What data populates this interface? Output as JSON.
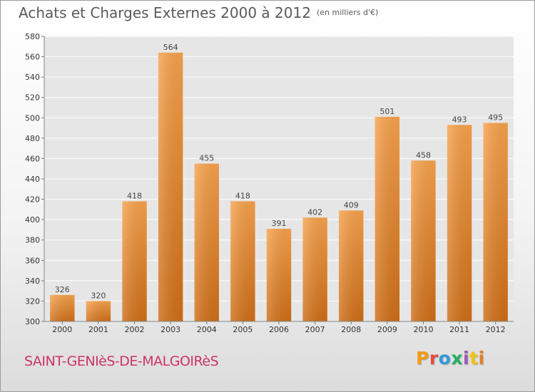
{
  "header": {
    "title": "Achats et Charges Externes 2000 à 2012",
    "unit": "(en milliers d'€)"
  },
  "footer": {
    "location": "SAINT-GENIèS-DE-MALGOIRèS",
    "logo_text": "Proxiti",
    "logo_colors": [
      "#f39c12",
      "#e74c3c",
      "#3498db",
      "#27ae60",
      "#9b59b6",
      "#f1c40f",
      "#e67e22"
    ]
  },
  "chart_data": {
    "type": "bar",
    "title": "Achats et Charges Externes 2000 à 2012",
    "subtitle": "(en milliers d'€)",
    "categories": [
      "2000",
      "2001",
      "2002",
      "2003",
      "2004",
      "2005",
      "2006",
      "2007",
      "2008",
      "2009",
      "2010",
      "2011",
      "2012"
    ],
    "values": [
      326,
      320,
      418,
      564,
      455,
      418,
      391,
      402,
      409,
      501,
      458,
      493,
      495
    ],
    "ylim": [
      300,
      580
    ],
    "yticks": [
      300,
      320,
      340,
      360,
      380,
      400,
      420,
      440,
      460,
      480,
      500,
      520,
      540,
      560,
      580
    ],
    "grid": true,
    "bar_color": "#f0922e",
    "xlabel": "",
    "ylabel": ""
  }
}
